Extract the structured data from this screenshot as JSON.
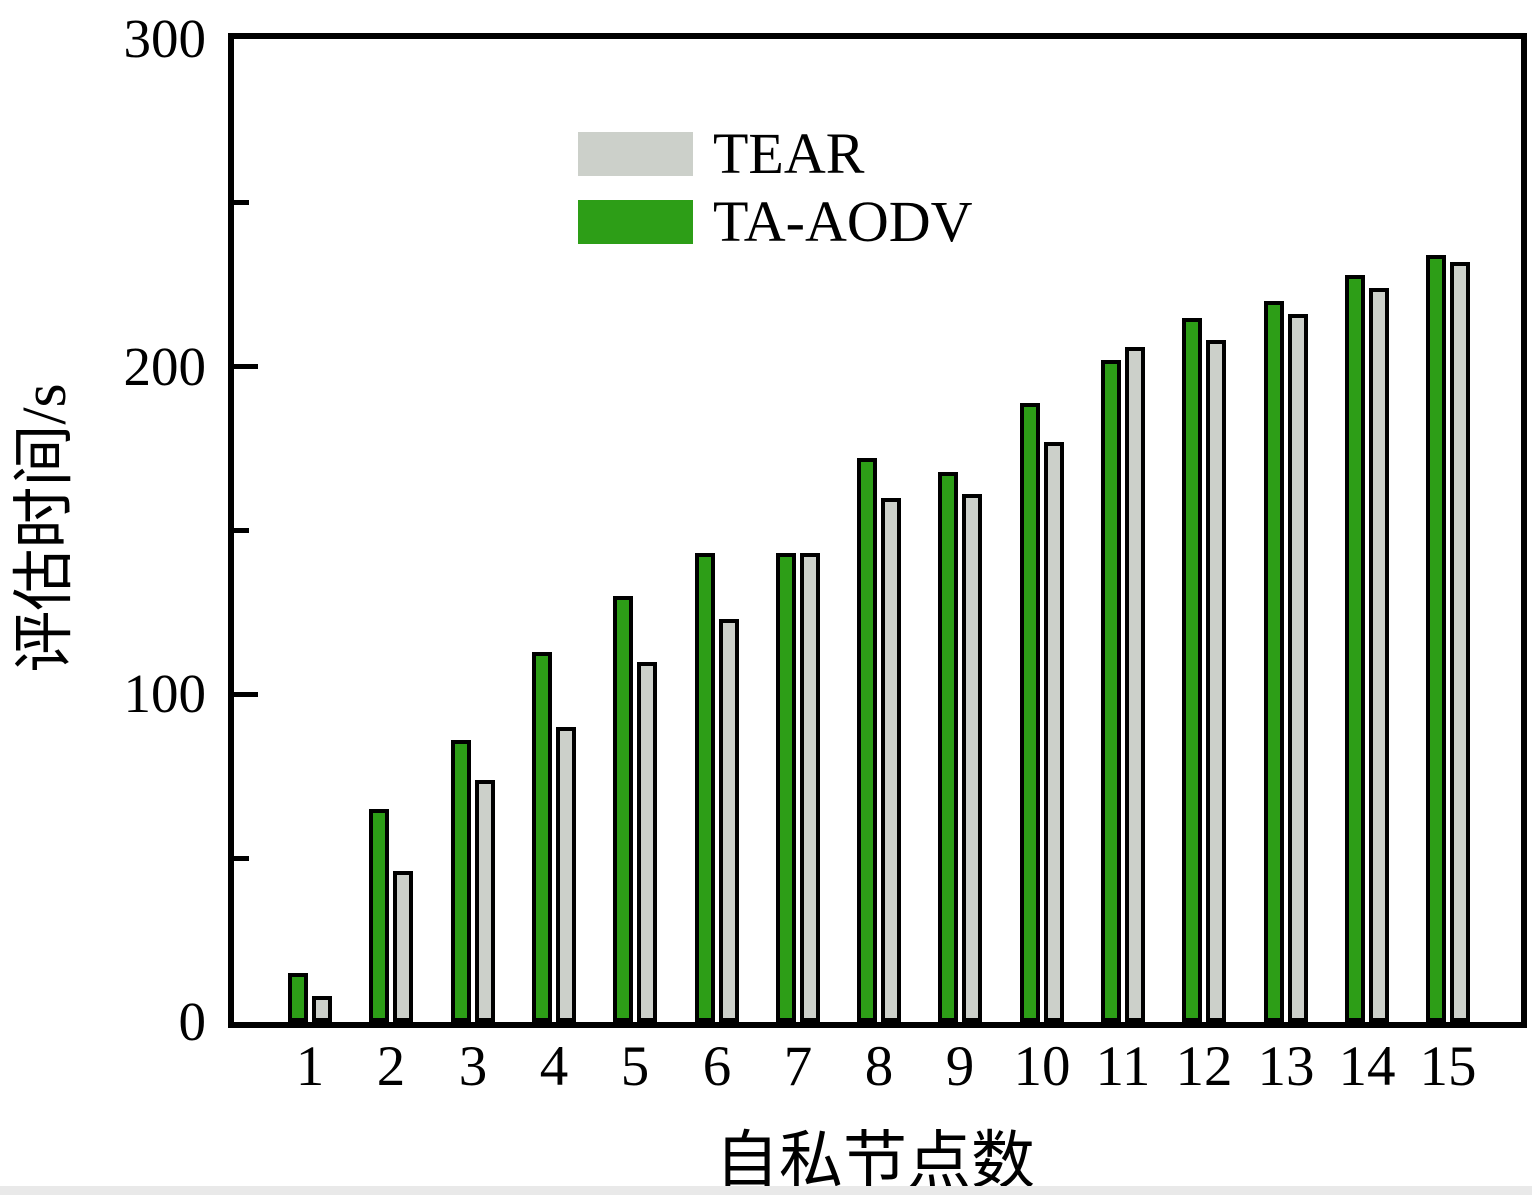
{
  "legend": [
    {
      "label": "TEAR",
      "color": "#ccd0ca"
    },
    {
      "label": "TA-AODV",
      "color": "#2d9e17"
    }
  ],
  "chart_data": {
    "type": "bar",
    "title": "",
    "xlabel": "自私节点数",
    "ylabel": "评估时间/s",
    "categories": [
      "1",
      "2",
      "3",
      "4",
      "5",
      "6",
      "7",
      "8",
      "9",
      "10",
      "11",
      "12",
      "13",
      "14",
      "15"
    ],
    "series": [
      {
        "name": "TA-AODV",
        "color": "#2d9e17",
        "values": [
          15,
          65,
          86,
          113,
          130,
          143,
          143,
          172,
          168,
          189,
          202,
          215,
          220,
          228,
          234
        ]
      },
      {
        "name": "TEAR",
        "color": "#ccd0ca",
        "values": [
          8,
          46,
          74,
          90,
          110,
          123,
          143,
          160,
          161,
          177,
          206,
          208,
          216,
          224,
          232
        ]
      }
    ],
    "ylim": [
      0,
      300
    ],
    "ytick_values": [
      0,
      100,
      200,
      300
    ],
    "ytick_labels": [
      "0",
      "100",
      "200",
      "300"
    ],
    "minor_tick_values": [
      50,
      150,
      250
    ],
    "grid": false,
    "legend_position": "upper-left-inside",
    "bar_outline_color": "#000000",
    "note": "green TA-AODV bar drawn left of gray TEAR bar in each group"
  }
}
